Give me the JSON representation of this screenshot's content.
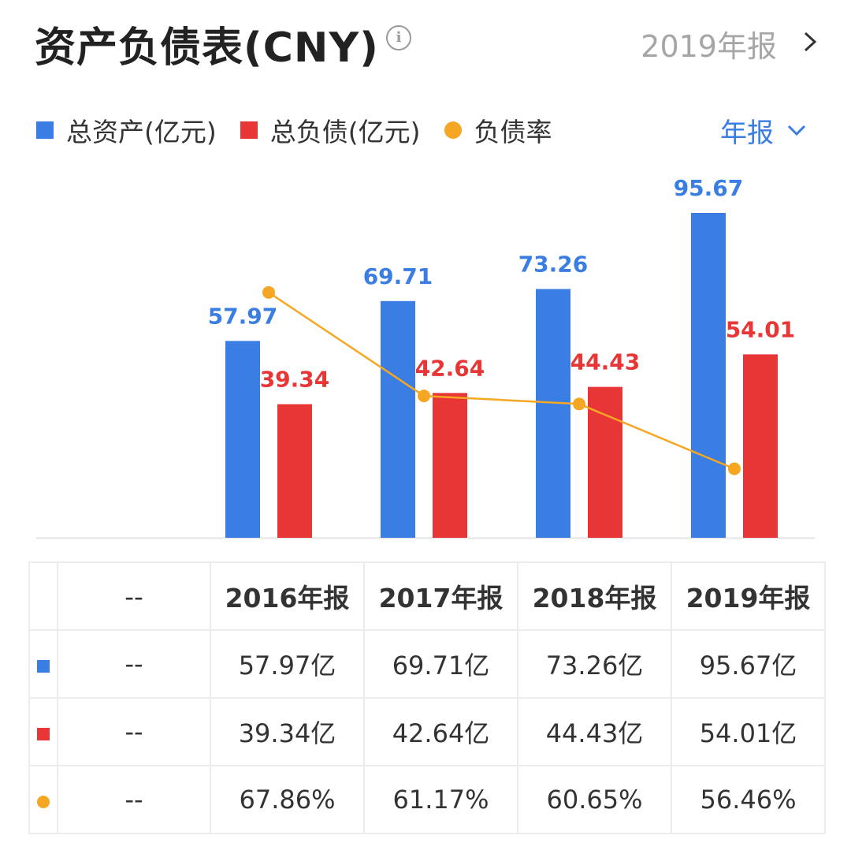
{
  "header": {
    "title": "资产负债表(CNY)",
    "info_icon": "info-icon",
    "period": "2019年报",
    "chevron_icon": "chevron-right-icon"
  },
  "legend": [
    {
      "label": "总资产(亿元)",
      "color": "#3a7de3",
      "marker": "square"
    },
    {
      "label": "总负债(亿元)",
      "color": "#e83535",
      "marker": "square"
    },
    {
      "label": "负债率",
      "color": "#f5a623",
      "marker": "dot"
    }
  ],
  "period_select": {
    "label": "年报",
    "icon": "chevron-down-icon"
  },
  "chart_data": {
    "type": "bar",
    "categories": [
      "2016年报",
      "2017年报",
      "2018年报",
      "2019年报"
    ],
    "series": [
      {
        "name": "总资产(亿元)",
        "values": [
          57.97,
          69.71,
          73.26,
          95.67
        ],
        "color": "#3a7de3",
        "type": "bar"
      },
      {
        "name": "总负债(亿元)",
        "values": [
          39.34,
          42.64,
          44.43,
          54.01
        ],
        "color": "#e83535",
        "type": "bar"
      },
      {
        "name": "负债率",
        "values": [
          67.86,
          61.17,
          60.65,
          56.46
        ],
        "color": "#f5a623",
        "type": "line",
        "unit": "%"
      }
    ],
    "ylim": [
      0,
      95.67
    ],
    "ylim_rate": [
      52,
      73
    ],
    "value_labels": {
      "assets": [
        "57.97",
        "69.71",
        "73.26",
        "95.67"
      ],
      "liabilities": [
        "39.34",
        "42.64",
        "44.43",
        "54.01"
      ]
    },
    "grid": false
  },
  "table": {
    "header": [
      "--",
      "2016年报",
      "2017年报",
      "2018年报",
      "2019年报"
    ],
    "rows": [
      {
        "marker": "square",
        "color": "#3a7de3",
        "label": "--",
        "values": [
          "57.97亿",
          "69.71亿",
          "73.26亿",
          "95.67亿"
        ]
      },
      {
        "marker": "square",
        "color": "#e83535",
        "label": "--",
        "values": [
          "39.34亿",
          "42.64亿",
          "44.43亿",
          "54.01亿"
        ]
      },
      {
        "marker": "dot",
        "color": "#f5a623",
        "label": "--",
        "values": [
          "67.86%",
          "61.17%",
          "60.65%",
          "56.46%"
        ]
      }
    ]
  }
}
